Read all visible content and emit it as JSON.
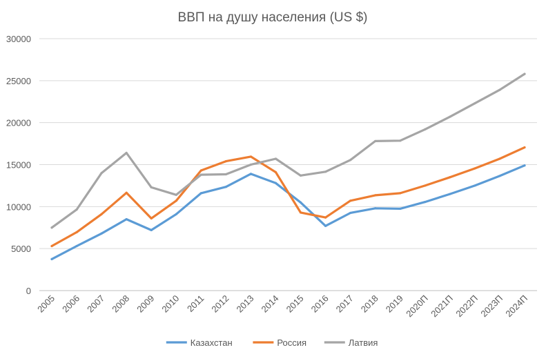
{
  "chart_data": {
    "type": "line",
    "title": "ВВП на душу населения (US $)",
    "xlabel": "",
    "ylabel": "",
    "categories": [
      "2005",
      "2006",
      "2007",
      "2008",
      "2009",
      "2010",
      "2011",
      "2012",
      "2013",
      "2014",
      "2015",
      "2016",
      "2017",
      "2018",
      "2019",
      "2020П",
      "2021П",
      "2022П",
      "2023П",
      "2024П"
    ],
    "ylim": [
      0,
      30000
    ],
    "yticks": [
      0,
      5000,
      10000,
      15000,
      20000,
      25000,
      30000
    ],
    "grid": true,
    "legend_position": "bottom",
    "series": [
      {
        "name": "Казахстан",
        "color": "#5b9bd5",
        "values": [
          3750,
          5300,
          6800,
          8500,
          7200,
          9100,
          11600,
          12350,
          13900,
          12800,
          10500,
          7700,
          9250,
          9800,
          9750,
          10550,
          11500,
          12500,
          13650,
          14900
        ]
      },
      {
        "name": "Россия",
        "color": "#ed7d31",
        "values": [
          5300,
          6950,
          9100,
          11650,
          8600,
          10700,
          14300,
          15400,
          15950,
          14100,
          9300,
          8700,
          10700,
          11350,
          11600,
          12500,
          13500,
          14550,
          15700,
          17050
        ]
      },
      {
        "name": "Латвия",
        "color": "#a5a5a5",
        "values": [
          7500,
          9650,
          14000,
          16400,
          12300,
          11400,
          13800,
          13850,
          15000,
          15700,
          13700,
          14150,
          15550,
          17800,
          17850,
          19200,
          20700,
          22300,
          23900,
          25800
        ]
      }
    ]
  }
}
